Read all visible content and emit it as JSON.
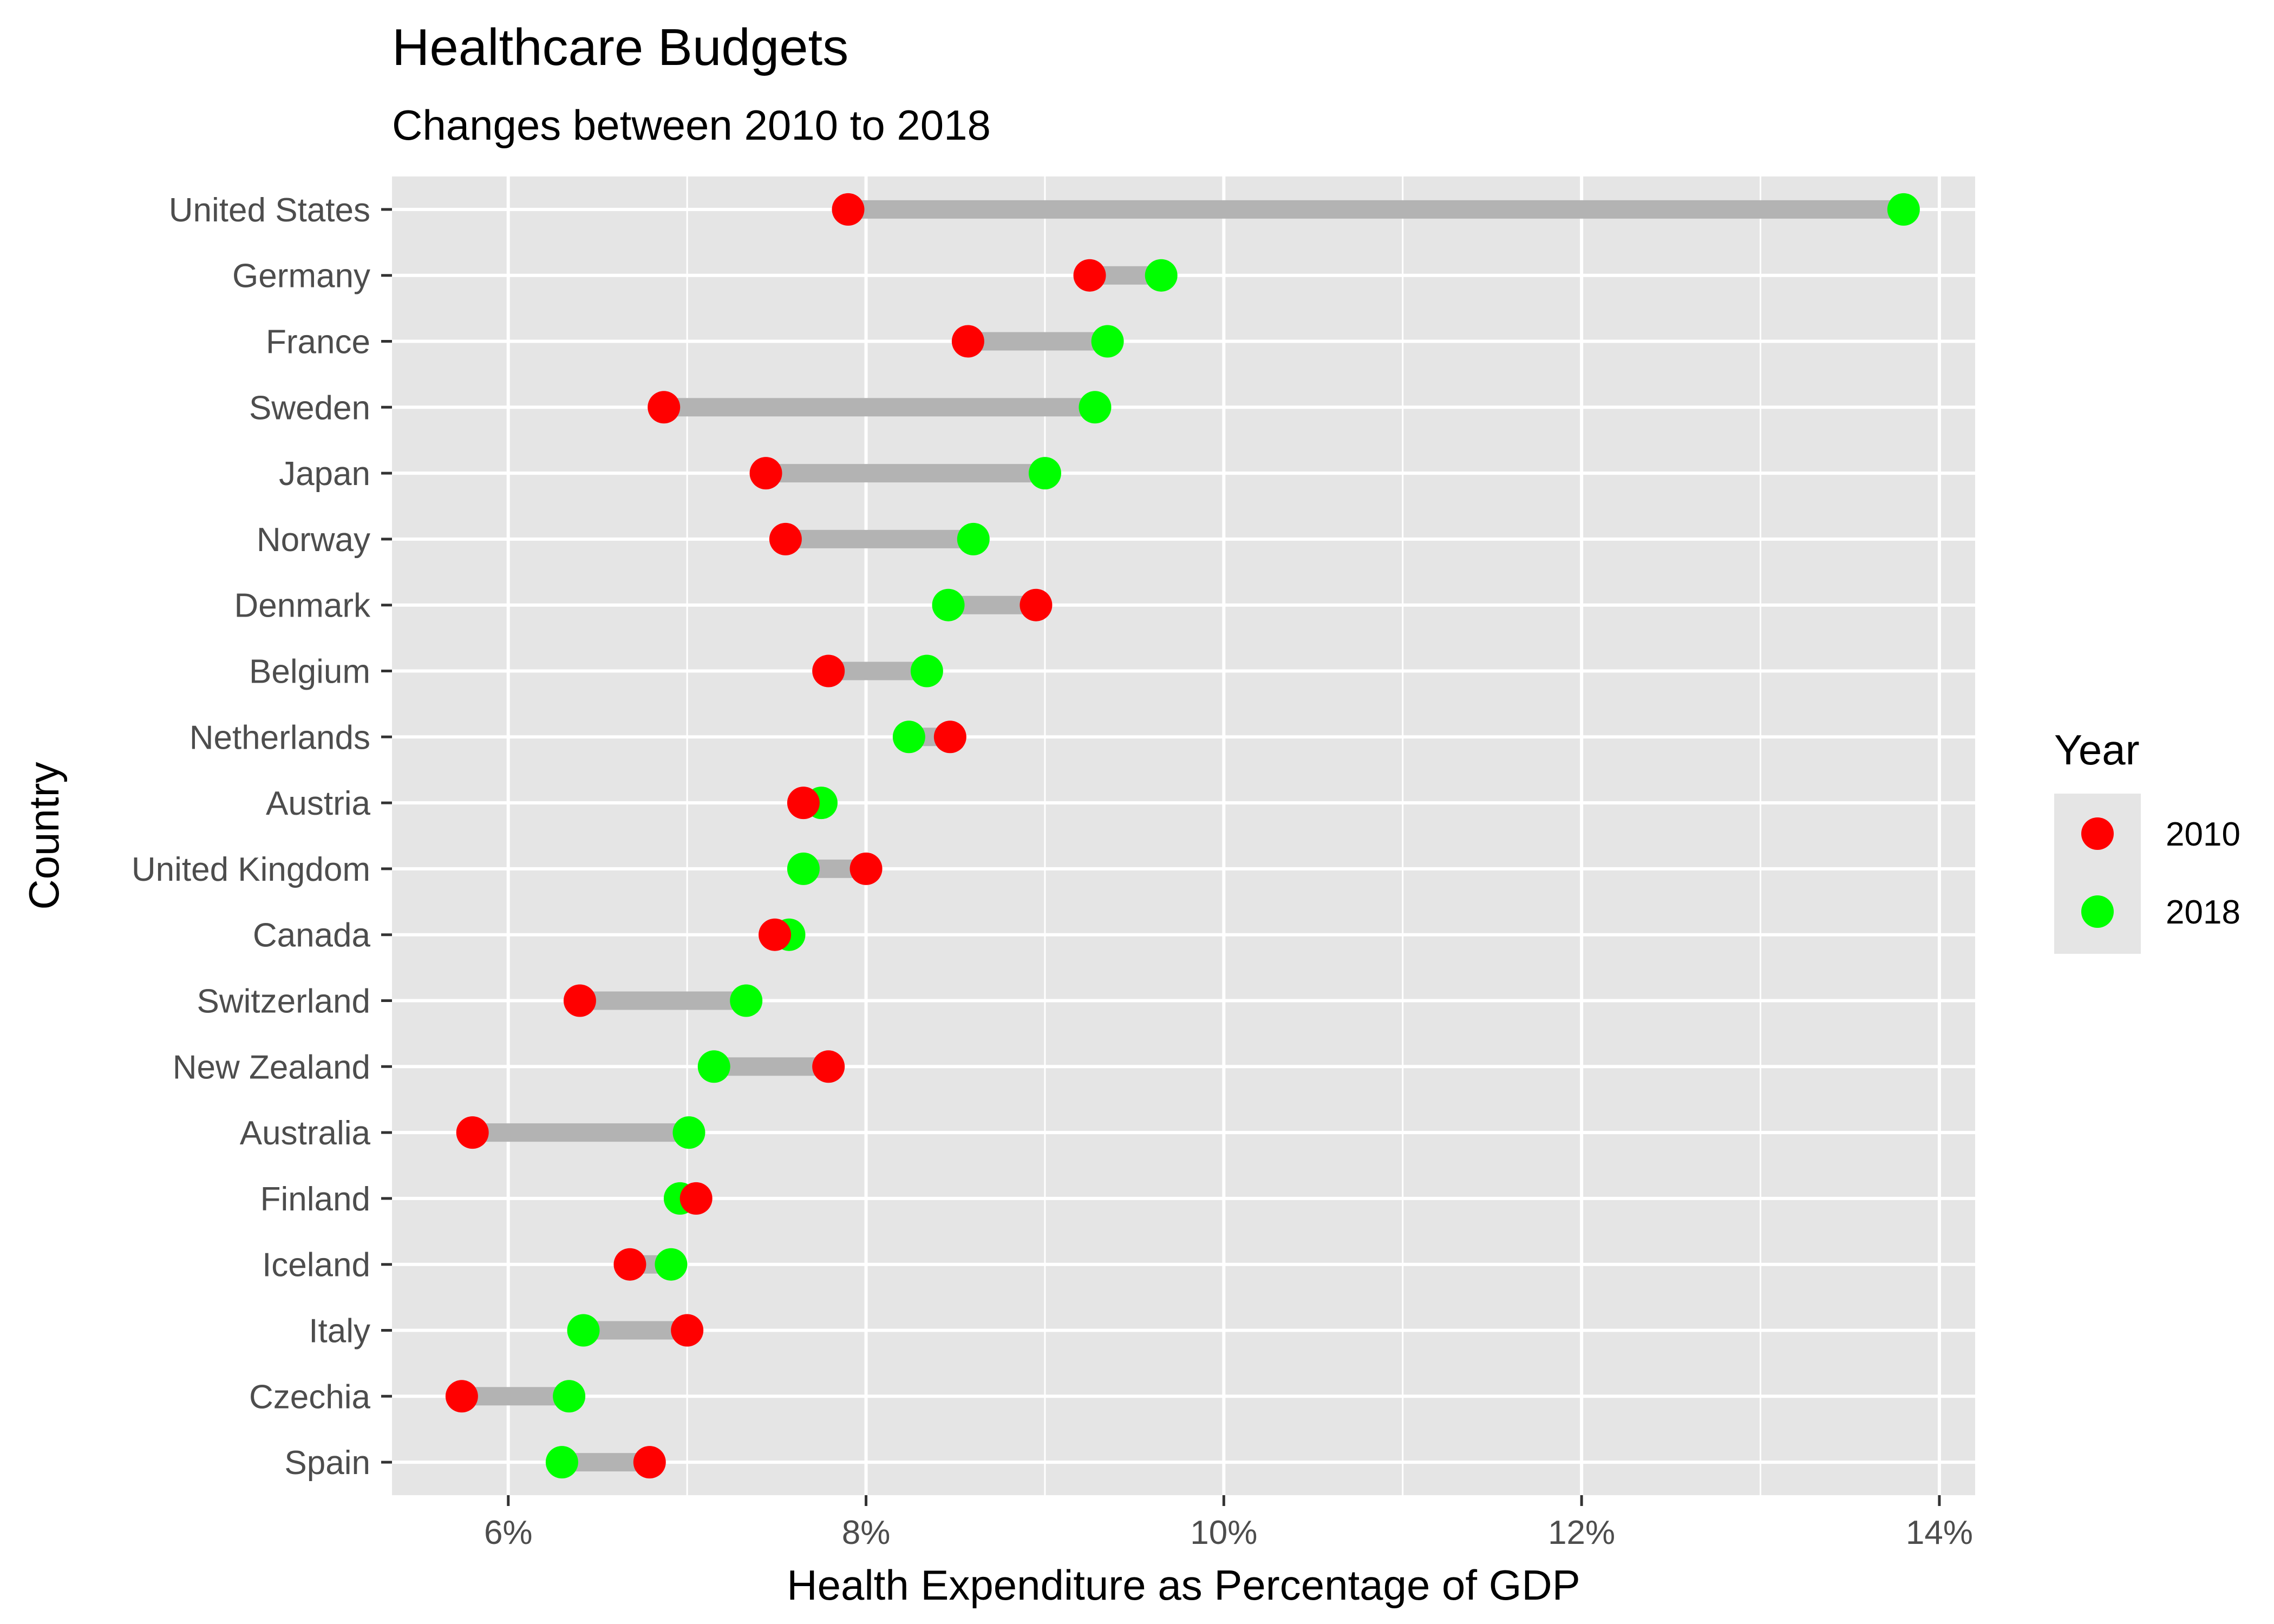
{
  "chart_data": {
    "type": "dumbbell",
    "title": "Healthcare Budgets",
    "subtitle": "Changes between 2010 to 2018",
    "xlabel": "Health Expenditure as Percentage of GDP",
    "ylabel": "Country",
    "xlim": [
      5.35,
      14.2
    ],
    "x_ticks": [
      6,
      8,
      10,
      12,
      14
    ],
    "x_tick_labels": [
      "6%",
      "8%",
      "10%",
      "12%",
      "14%"
    ],
    "categories": [
      "United States",
      "Germany",
      "France",
      "Sweden",
      "Japan",
      "Norway",
      "Denmark",
      "Belgium",
      "Netherlands",
      "Austria",
      "United Kingdom",
      "Canada",
      "Switzerland",
      "New Zealand",
      "Australia",
      "Finland",
      "Iceland",
      "Italy",
      "Czechia",
      "Spain"
    ],
    "series": [
      {
        "name": "2010",
        "color": "#ff0000",
        "values": [
          7.9,
          9.25,
          8.57,
          6.87,
          7.44,
          7.55,
          8.95,
          7.79,
          8.47,
          7.65,
          8.0,
          7.49,
          6.4,
          7.79,
          5.8,
          7.05,
          6.68,
          7.0,
          5.74,
          6.79
        ]
      },
      {
        "name": "2018",
        "color": "#00ff00",
        "values": [
          13.8,
          9.65,
          9.35,
          9.28,
          9.0,
          8.6,
          8.46,
          8.34,
          8.24,
          7.75,
          7.65,
          7.57,
          7.33,
          7.15,
          7.01,
          6.96,
          6.91,
          6.42,
          6.34,
          6.3
        ]
      }
    ],
    "segment_color": "#b3b3b3",
    "grid": true,
    "panel_background": "#e5e5e5",
    "legend": {
      "title": "Year",
      "position": "right",
      "entries": [
        "2010",
        "2018"
      ]
    }
  }
}
